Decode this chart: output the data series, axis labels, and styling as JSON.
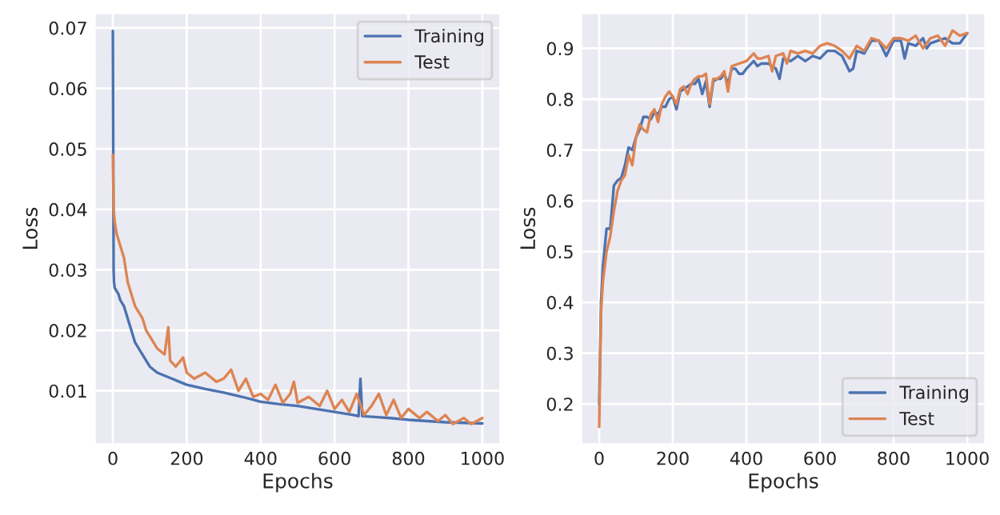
{
  "chart_data": [
    {
      "type": "line",
      "xlabel": "Epochs",
      "ylabel": "Loss",
      "xlim": [
        -50,
        1050
      ],
      "ylim": [
        0.0011,
        0.0725
      ],
      "xticks": [
        0,
        200,
        400,
        600,
        800,
        1000
      ],
      "yticks": [
        0.01,
        0.02,
        0.03,
        0.04,
        0.05,
        0.06,
        0.07
      ],
      "grid": true,
      "legend": "top right",
      "series": [
        {
          "name": "Training",
          "color": "#4c72b0",
          "x": [
            0,
            2,
            3,
            5,
            10,
            15,
            20,
            30,
            40,
            50,
            60,
            70,
            80,
            90,
            100,
            120,
            140,
            160,
            180,
            200,
            250,
            300,
            350,
            400,
            450,
            500,
            550,
            600,
            650,
            665,
            670,
            675,
            700,
            750,
            800,
            850,
            900,
            950,
            1000
          ],
          "values": [
            0.0695,
            0.03,
            0.028,
            0.027,
            0.0265,
            0.026,
            0.025,
            0.024,
            0.022,
            0.02,
            0.018,
            0.017,
            0.016,
            0.015,
            0.014,
            0.013,
            0.0125,
            0.012,
            0.0115,
            0.011,
            0.0103,
            0.0097,
            0.009,
            0.0082,
            0.0078,
            0.0075,
            0.007,
            0.0065,
            0.006,
            0.0058,
            0.012,
            0.0058,
            0.0057,
            0.0055,
            0.0052,
            0.005,
            0.0048,
            0.0047,
            0.0046
          ]
        },
        {
          "name": "Test",
          "color": "#dd8452",
          "x": [
            0,
            2,
            5,
            10,
            20,
            30,
            40,
            50,
            60,
            70,
            80,
            90,
            100,
            110,
            120,
            140,
            150,
            155,
            170,
            190,
            200,
            220,
            250,
            280,
            300,
            320,
            340,
            360,
            380,
            400,
            420,
            440,
            460,
            480,
            490,
            500,
            530,
            560,
            580,
            600,
            620,
            640,
            660,
            680,
            700,
            720,
            740,
            760,
            780,
            800,
            830,
            850,
            880,
            900,
            920,
            950,
            970,
            1000
          ],
          "values": [
            0.049,
            0.04,
            0.038,
            0.036,
            0.034,
            0.032,
            0.028,
            0.026,
            0.024,
            0.023,
            0.022,
            0.02,
            0.019,
            0.018,
            0.017,
            0.016,
            0.0205,
            0.015,
            0.014,
            0.0155,
            0.013,
            0.012,
            0.013,
            0.0115,
            0.012,
            0.0135,
            0.01,
            0.012,
            0.009,
            0.0095,
            0.0085,
            0.011,
            0.008,
            0.0095,
            0.0115,
            0.008,
            0.009,
            0.0075,
            0.01,
            0.007,
            0.0085,
            0.0065,
            0.0095,
            0.006,
            0.0075,
            0.0095,
            0.006,
            0.0085,
            0.0055,
            0.007,
            0.0055,
            0.0065,
            0.005,
            0.006,
            0.0045,
            0.0055,
            0.0045,
            0.0055
          ]
        }
      ]
    },
    {
      "type": "line",
      "xlabel": "Epochs",
      "ylabel": "Loss",
      "xlim": [
        -50,
        1050
      ],
      "ylim": [
        0.12,
        0.97
      ],
      "xticks": [
        0,
        200,
        400,
        600,
        800,
        1000
      ],
      "yticks": [
        0.2,
        0.3,
        0.4,
        0.5,
        0.6,
        0.7,
        0.8,
        0.9
      ],
      "grid": true,
      "legend": "bottom right",
      "series": [
        {
          "name": "Training",
          "color": "#4c72b0",
          "x": [
            0,
            5,
            10,
            20,
            30,
            40,
            50,
            60,
            70,
            80,
            90,
            100,
            110,
            120,
            130,
            140,
            150,
            160,
            170,
            180,
            190,
            200,
            210,
            220,
            230,
            240,
            250,
            260,
            270,
            280,
            290,
            300,
            310,
            320,
            330,
            340,
            350,
            360,
            370,
            380,
            390,
            400,
            420,
            430,
            440,
            460,
            480,
            490,
            500,
            520,
            540,
            560,
            580,
            600,
            620,
            640,
            660,
            680,
            690,
            700,
            720,
            740,
            760,
            780,
            800,
            820,
            830,
            840,
            860,
            880,
            890,
            900,
            920,
            940,
            960,
            980,
            1000
          ],
          "values": [
            0.2,
            0.4,
            0.47,
            0.545,
            0.545,
            0.63,
            0.64,
            0.645,
            0.67,
            0.705,
            0.7,
            0.725,
            0.74,
            0.765,
            0.765,
            0.76,
            0.775,
            0.77,
            0.785,
            0.785,
            0.8,
            0.805,
            0.78,
            0.815,
            0.82,
            0.825,
            0.83,
            0.83,
            0.84,
            0.81,
            0.835,
            0.785,
            0.835,
            0.84,
            0.84,
            0.85,
            0.83,
            0.86,
            0.86,
            0.85,
            0.85,
            0.86,
            0.875,
            0.865,
            0.87,
            0.87,
            0.86,
            0.84,
            0.88,
            0.875,
            0.885,
            0.875,
            0.885,
            0.88,
            0.895,
            0.895,
            0.885,
            0.855,
            0.86,
            0.895,
            0.89,
            0.915,
            0.915,
            0.885,
            0.915,
            0.915,
            0.88,
            0.91,
            0.905,
            0.92,
            0.9,
            0.91,
            0.915,
            0.92,
            0.91,
            0.91,
            0.93
          ]
        },
        {
          "name": "Test",
          "color": "#dd8452",
          "x": [
            0,
            5,
            10,
            20,
            30,
            40,
            50,
            60,
            70,
            80,
            90,
            100,
            110,
            120,
            130,
            140,
            150,
            160,
            170,
            180,
            190,
            200,
            210,
            220,
            230,
            240,
            250,
            260,
            270,
            280,
            290,
            300,
            310,
            320,
            330,
            340,
            350,
            360,
            380,
            400,
            420,
            430,
            440,
            460,
            470,
            480,
            500,
            510,
            520,
            540,
            560,
            580,
            600,
            620,
            640,
            660,
            680,
            700,
            720,
            740,
            760,
            780,
            800,
            820,
            840,
            860,
            880,
            900,
            920,
            940,
            960,
            980,
            1000
          ],
          "values": [
            0.155,
            0.38,
            0.44,
            0.5,
            0.53,
            0.58,
            0.62,
            0.64,
            0.65,
            0.69,
            0.67,
            0.725,
            0.75,
            0.74,
            0.735,
            0.77,
            0.78,
            0.755,
            0.79,
            0.805,
            0.815,
            0.805,
            0.79,
            0.82,
            0.825,
            0.81,
            0.83,
            0.84,
            0.845,
            0.845,
            0.85,
            0.79,
            0.84,
            0.84,
            0.845,
            0.855,
            0.815,
            0.865,
            0.87,
            0.875,
            0.89,
            0.88,
            0.88,
            0.885,
            0.855,
            0.885,
            0.89,
            0.87,
            0.895,
            0.89,
            0.895,
            0.89,
            0.905,
            0.91,
            0.905,
            0.895,
            0.88,
            0.905,
            0.895,
            0.92,
            0.915,
            0.9,
            0.92,
            0.92,
            0.915,
            0.925,
            0.9,
            0.92,
            0.925,
            0.905,
            0.935,
            0.925,
            0.93
          ]
        }
      ]
    }
  ]
}
